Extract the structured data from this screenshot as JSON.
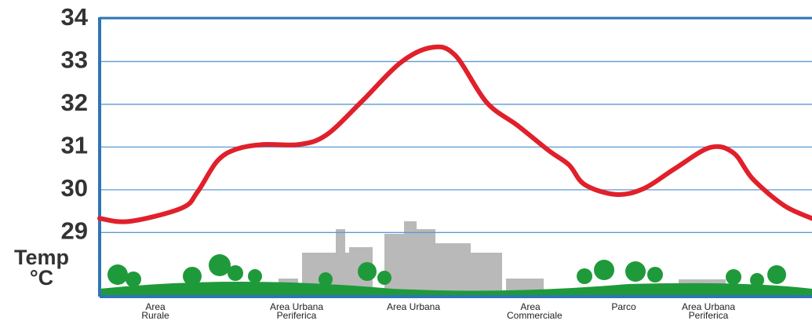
{
  "chart_data": {
    "type": "line",
    "ylabel": "Temp °C",
    "categories": [
      "Area Rurale",
      "Area Urbana Periferica",
      "Area Urbana",
      "Area Commerciale",
      "Parco",
      "Area Urbana Periferica"
    ],
    "x": [
      0,
      4.2,
      11.5,
      13.7,
      16.5,
      19.2,
      23.0,
      28.0,
      31.8,
      36.7,
      42.2,
      46.6,
      49.9,
      54.3,
      58.7,
      63.1,
      65.9,
      68.1,
      72.5,
      76.4,
      80.7,
      85.7,
      89.0,
      91.7,
      96.1,
      100
    ],
    "series": [
      {
        "color": "#e0202a",
        "values": [
          29.33,
          29.26,
          29.57,
          29.94,
          30.67,
          30.95,
          31.06,
          31.06,
          31.28,
          32.05,
          32.97,
          33.33,
          33.15,
          32.05,
          31.5,
          30.91,
          30.58,
          30.12,
          29.89,
          30.03,
          30.49,
          30.99,
          30.86,
          30.25,
          29.63,
          29.33
        ]
      }
    ],
    "xlim": [
      0,
      100
    ],
    "ylim": [
      27.5,
      34
    ],
    "yticks": [
      29,
      30,
      31,
      32,
      33,
      34
    ],
    "grid": true
  }
}
